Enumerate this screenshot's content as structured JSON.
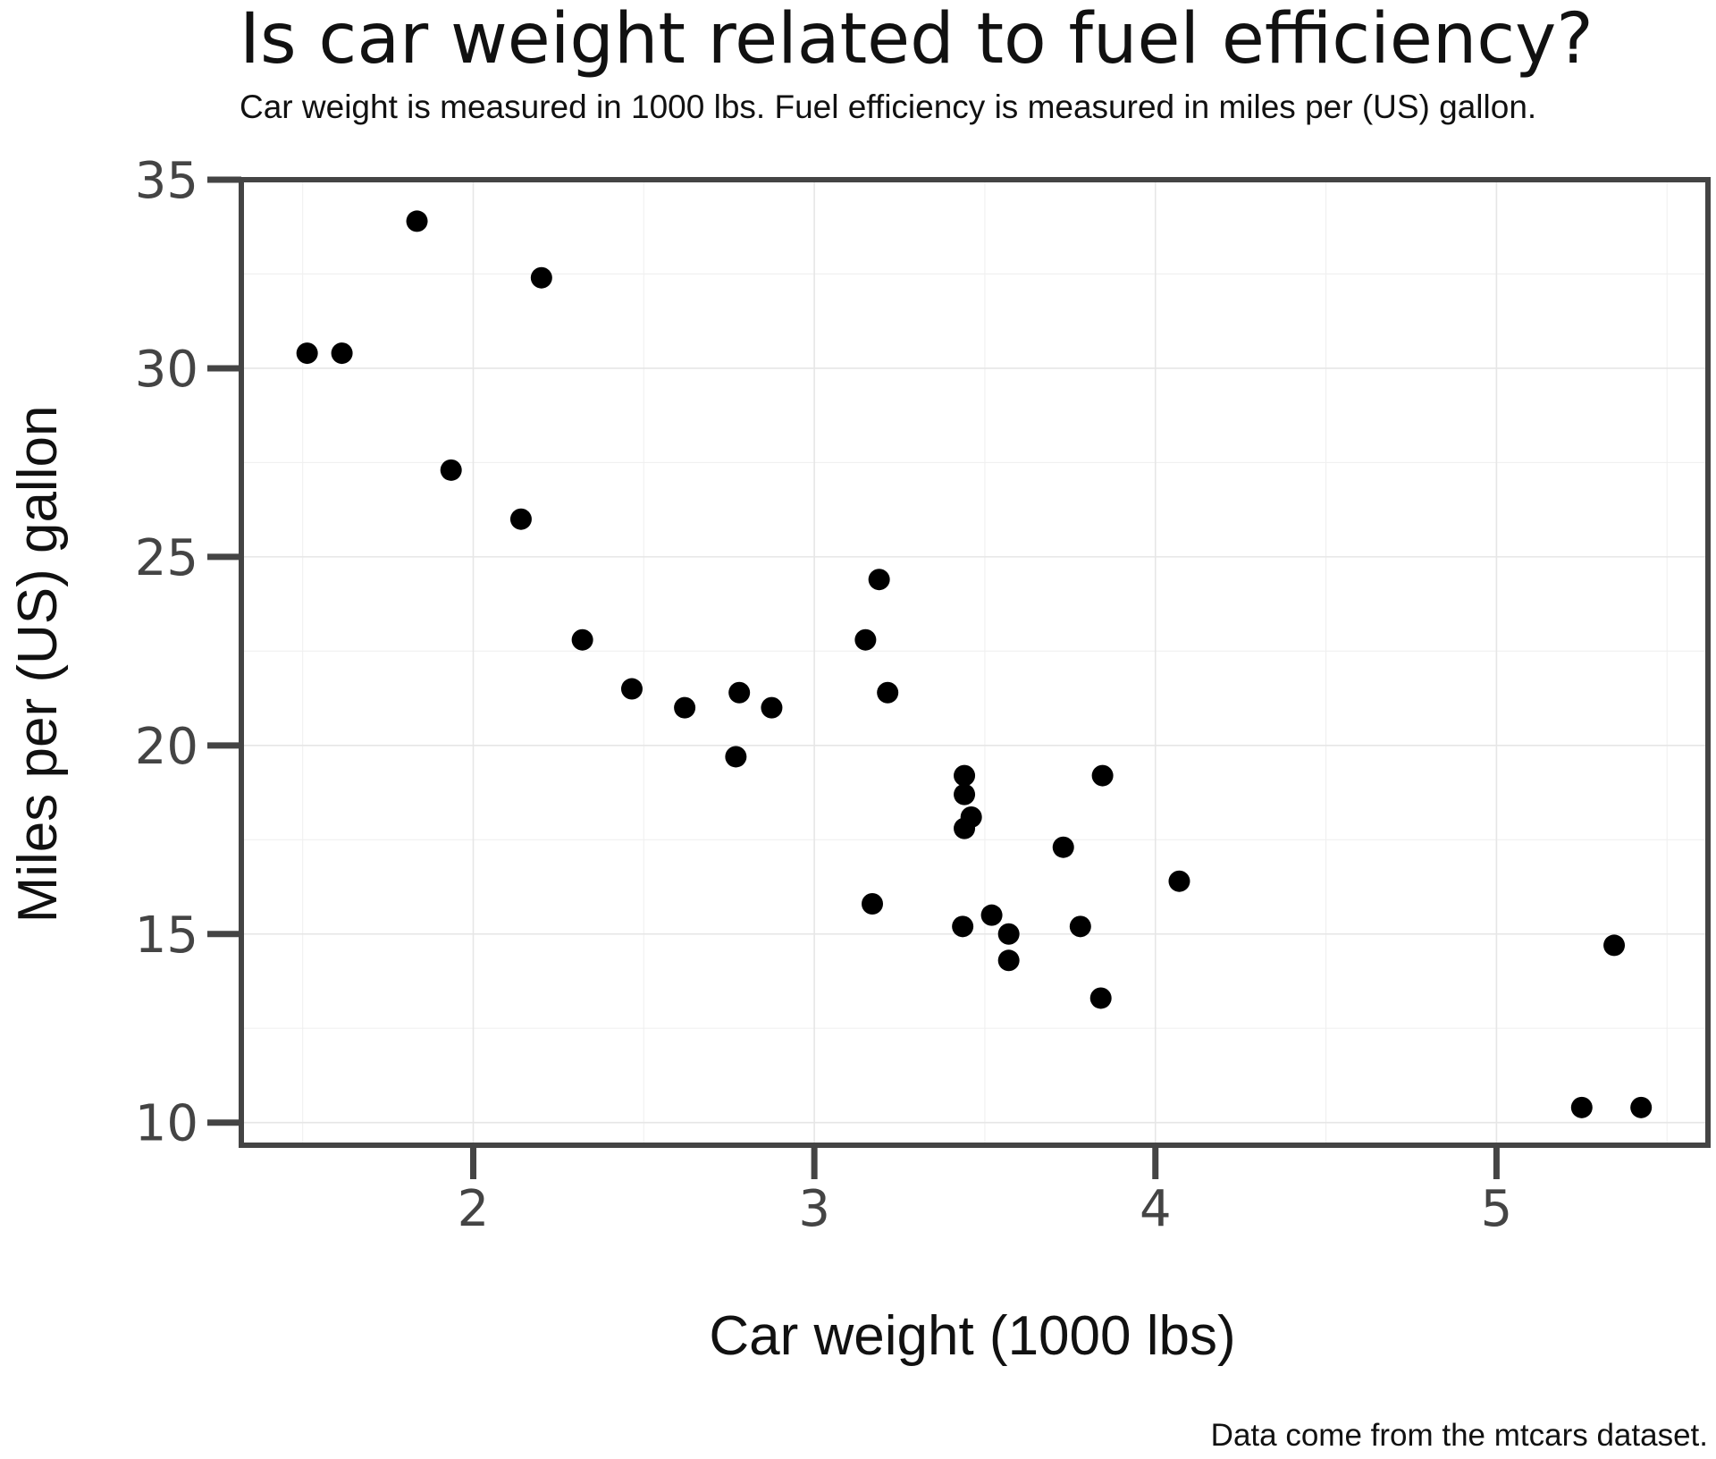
{
  "chart_data": {
    "type": "scatter",
    "title": "Is car weight related to fuel efficiency?",
    "subtitle": "Car weight is measured in 1000 lbs. Fuel efficiency is measured in miles per (US) gallon.",
    "xlabel": "Car weight (1000 lbs)",
    "ylabel": "Miles per (US) gallon",
    "caption": "Data come from the mtcars dataset.",
    "xlim": [
      1.32,
      5.62
    ],
    "ylim": [
      9.4,
      35.0
    ],
    "xticks": [
      2,
      3,
      4,
      5
    ],
    "yticks": [
      10,
      15,
      20,
      25,
      30,
      35
    ],
    "grid": true,
    "series": [
      {
        "points": [
          {
            "x": 2.62,
            "y": 21.0
          },
          {
            "x": 2.875,
            "y": 21.0
          },
          {
            "x": 2.32,
            "y": 22.8
          },
          {
            "x": 3.215,
            "y": 21.4
          },
          {
            "x": 3.44,
            "y": 18.7
          },
          {
            "x": 3.46,
            "y": 18.1
          },
          {
            "x": 3.57,
            "y": 14.3
          },
          {
            "x": 3.19,
            "y": 24.4
          },
          {
            "x": 3.15,
            "y": 22.8
          },
          {
            "x": 3.44,
            "y": 19.2
          },
          {
            "x": 3.44,
            "y": 17.8
          },
          {
            "x": 4.07,
            "y": 16.4
          },
          {
            "x": 3.73,
            "y": 17.3
          },
          {
            "x": 3.78,
            "y": 15.2
          },
          {
            "x": 5.25,
            "y": 10.4
          },
          {
            "x": 5.424,
            "y": 10.4
          },
          {
            "x": 5.345,
            "y": 14.7
          },
          {
            "x": 2.2,
            "y": 32.4
          },
          {
            "x": 1.615,
            "y": 30.4
          },
          {
            "x": 1.835,
            "y": 33.9
          },
          {
            "x": 2.465,
            "y": 21.5
          },
          {
            "x": 3.52,
            "y": 15.5
          },
          {
            "x": 3.435,
            "y": 15.2
          },
          {
            "x": 3.84,
            "y": 13.3
          },
          {
            "x": 3.845,
            "y": 19.2
          },
          {
            "x": 1.935,
            "y": 27.3
          },
          {
            "x": 2.14,
            "y": 26.0
          },
          {
            "x": 1.513,
            "y": 30.4
          },
          {
            "x": 3.17,
            "y": 15.8
          },
          {
            "x": 2.77,
            "y": 19.7
          },
          {
            "x": 3.57,
            "y": 15.0
          },
          {
            "x": 2.78,
            "y": 21.4
          }
        ]
      }
    ]
  }
}
